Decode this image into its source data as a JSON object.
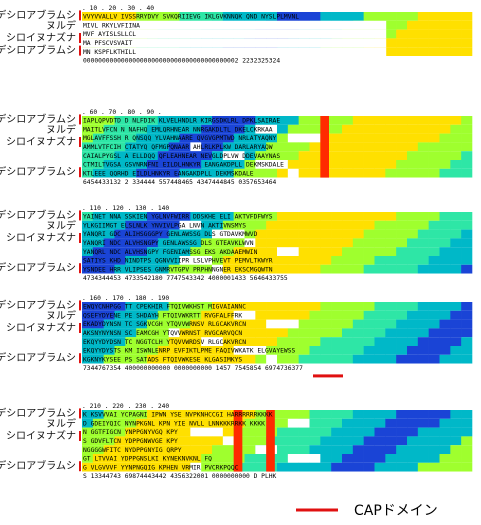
{
  "colors": {
    "conserved": "#ff2a00",
    "high": "#ff9c00",
    "upper": "#ffe000",
    "mid": "#9fff2e",
    "lower": "#2ee6a6",
    "teal": "#00b8c8",
    "lowest": "#1a44d6",
    "redmark": "#e01010"
  },
  "species": [
    "ヌルデシロアブラムシ",
    "ヌルデ",
    "シロイヌナズナ",
    "ヌルデシロアブラムシ"
  ],
  "legend": {
    "label": "CAPドメイン"
  },
  "blocks": [
    {
      "ruler": "         .         10        .         20        .         30        .         40",
      "rows": [
        "VVYVVALLV IVSSRRYDVY SVKQRIIEVG IKLGVKNNQK QND NYSLPLMVNL",
        "                                          MIVL RKYLVFIINA",
        "                                          MVF  AYISLSLLCL",
        "                                          MA   PFSCVSVAIT",
        "                                          MN   KSPFLKTHILL",
        "00000000000000000000000000000000000000002 2232325324"
      ]
    },
    {
      "ruler": "    .       60        .       70        .       80        .       90        .",
      "rows": [
        "IAPLQPVDTD D NLFDIK KLVELHNDLR KIRGSDKLRL DPKLSAIRAE",
        "MAITLVFCN N NAFHQ EMLQRHNEAR NNRGAKDLTL DKELCKRKAA",
        "MGLAVFFSSH R QNSQQ YLVAHNAARE QVGVGPMTWD NRLATYAQNY",
        "AMMLVTFCIH CTATYQ QFMGPQNAAR AHLRLKPLKW DARLARYAQW",
        "CAIALPYGSL A ELLDQQ QFLEAHNEAR NEVGLDPLVW DDEVAAYNAS",
        "CTMILTVGSA GSVNRNFNI EILDLHNKYR EANGAKDPLL DEKMSKDALE",
        "KTLEEE QQRHD EILDLHNKYR EANGAKDPLL DEKMSKDALE",
        "6454433132 2 334444 557448465 4347444845 0357653464"
      ]
    },
    {
      "ruler": "   .         110        .         120       .         130       .         140",
      "rows": [
        "YAINET NNA SSKIEN YGLNVFWIRR DDSKHE ELI AKTVFDFWYS",
        "YLKGIIMGT ELSLNLK YNVIVLPGA LNVN AKTIVNSMYS",
        "YANQRI GDC ALIHSGGGPY GENLAWSSG DLS GTDAVKMWVD",
        "YANQRI NDC ALVHSNGPY GENLAWSSG DLS GTEAVKLWVN",
        "YANQRL NDC ALVHSNGPY FGENIAMSSG EKS AKDAAEMWIN",
        "SATIYS KHD NINDTPS QGNVVIIPR LSLVPHVEVT PEMVLTKWYR",
        "YSNDEE HRR VLIPSES GNMRVTGPV PRPHNNGNER EKSCMGQWTN",
        "4734344453 4733542180 7747543342 4000001433 5646433755"
      ]
    },
    {
      "ruler": "   .         160        .         170        .         180        .         190",
      "rows": [
        "EWQYCNHPGG TT CPEKHIR FTQIVWKHST MIGVAIANNC",
        "QSEFYDYENE PE SHDAYH FTQIVWKRTT RVGFALFFRK",
        "EKADYDYNSN TC SGKVCGH YTQVVWRNSV RLGCAKVRCN",
        "AKSNYNYNSN SC EAMCGH YTQVVWRNST RVGCARVQCN",
        "EKQYYDYDSN TC NGGTCLH YTQVVWRDSV RLGCAKVRCN",
        "EKQYYDYSTS KM ISWNLENRP EVFIKTLPME FAQIVWKATK ELGVAYEWSS",
        "KGKNYKYSEE PS SATADS FTQIVWKESE KLGASIMKYS",
        "7344767354 400000000000 0000000000 1457 7545854 6974736377"
      ]
    },
    {
      "ruler": "   .      210        .         220        .         230        .         240",
      "rows": [
        "K KSVVVAI YCPAGNI IPWN YSE NVPKNHCCGI HARRRRRRKKKK",
        "D GDEIYQIC NYNPKGNL KPN YIE NVLL LNNKKKRRKK KKKK",
        "N GGTFIGCN YNPPGNYVGQ KPY",
        "S GDVFLTCN YDPPGNWVGE KPY",
        "NGGGGWFITC NYDPPGNYIG QRPY",
        "GT LTVVAI YDPPGNSLKI KYNEKNVKNL FQ",
        "G VLGVVVF YYNPNGQIG KPHEN VRMIR PVCRKPQQC",
        "S 13344743 69874443442 4356322001 0000000000 D PLHK"
      ]
    }
  ]
}
